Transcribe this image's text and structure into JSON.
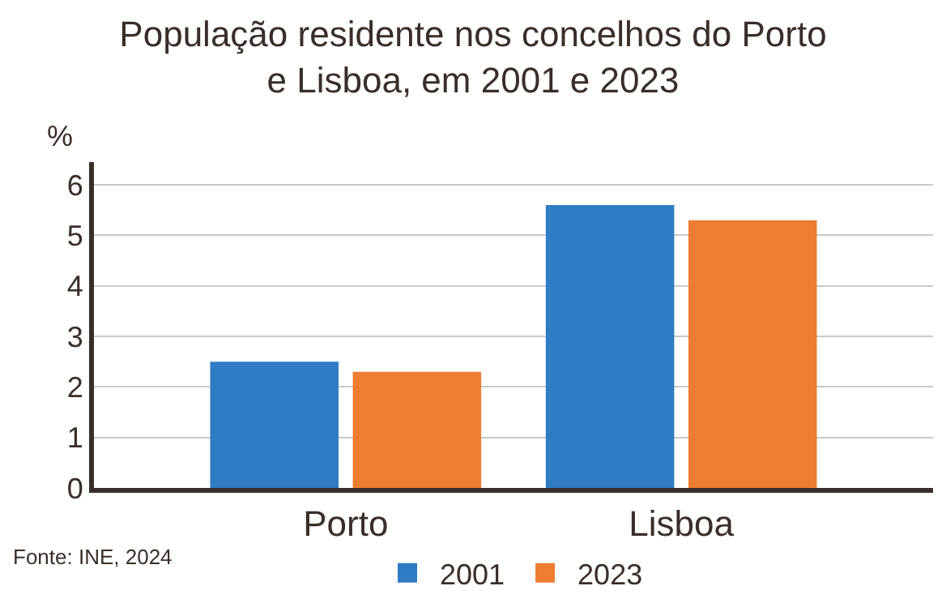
{
  "chart_data": {
    "type": "bar",
    "title": "População residente nos concelhos do Porto\ne Lisboa, em 2001 e 2023",
    "ylabel": "%",
    "categories": [
      "Porto",
      "Lisboa"
    ],
    "series": [
      {
        "name": "2001",
        "color": "#2f7bc4",
        "values": [
          2.5,
          5.6
        ]
      },
      {
        "name": "2023",
        "color": "#ec7d31",
        "values": [
          2.3,
          5.3
        ]
      }
    ],
    "ylim": [
      0,
      6.45
    ],
    "yticks": [
      0,
      1,
      2,
      3,
      4,
      5,
      6
    ],
    "grid": "y",
    "legend": "bottom",
    "annotations": [
      "Fonte: INE, 2024"
    ]
  }
}
